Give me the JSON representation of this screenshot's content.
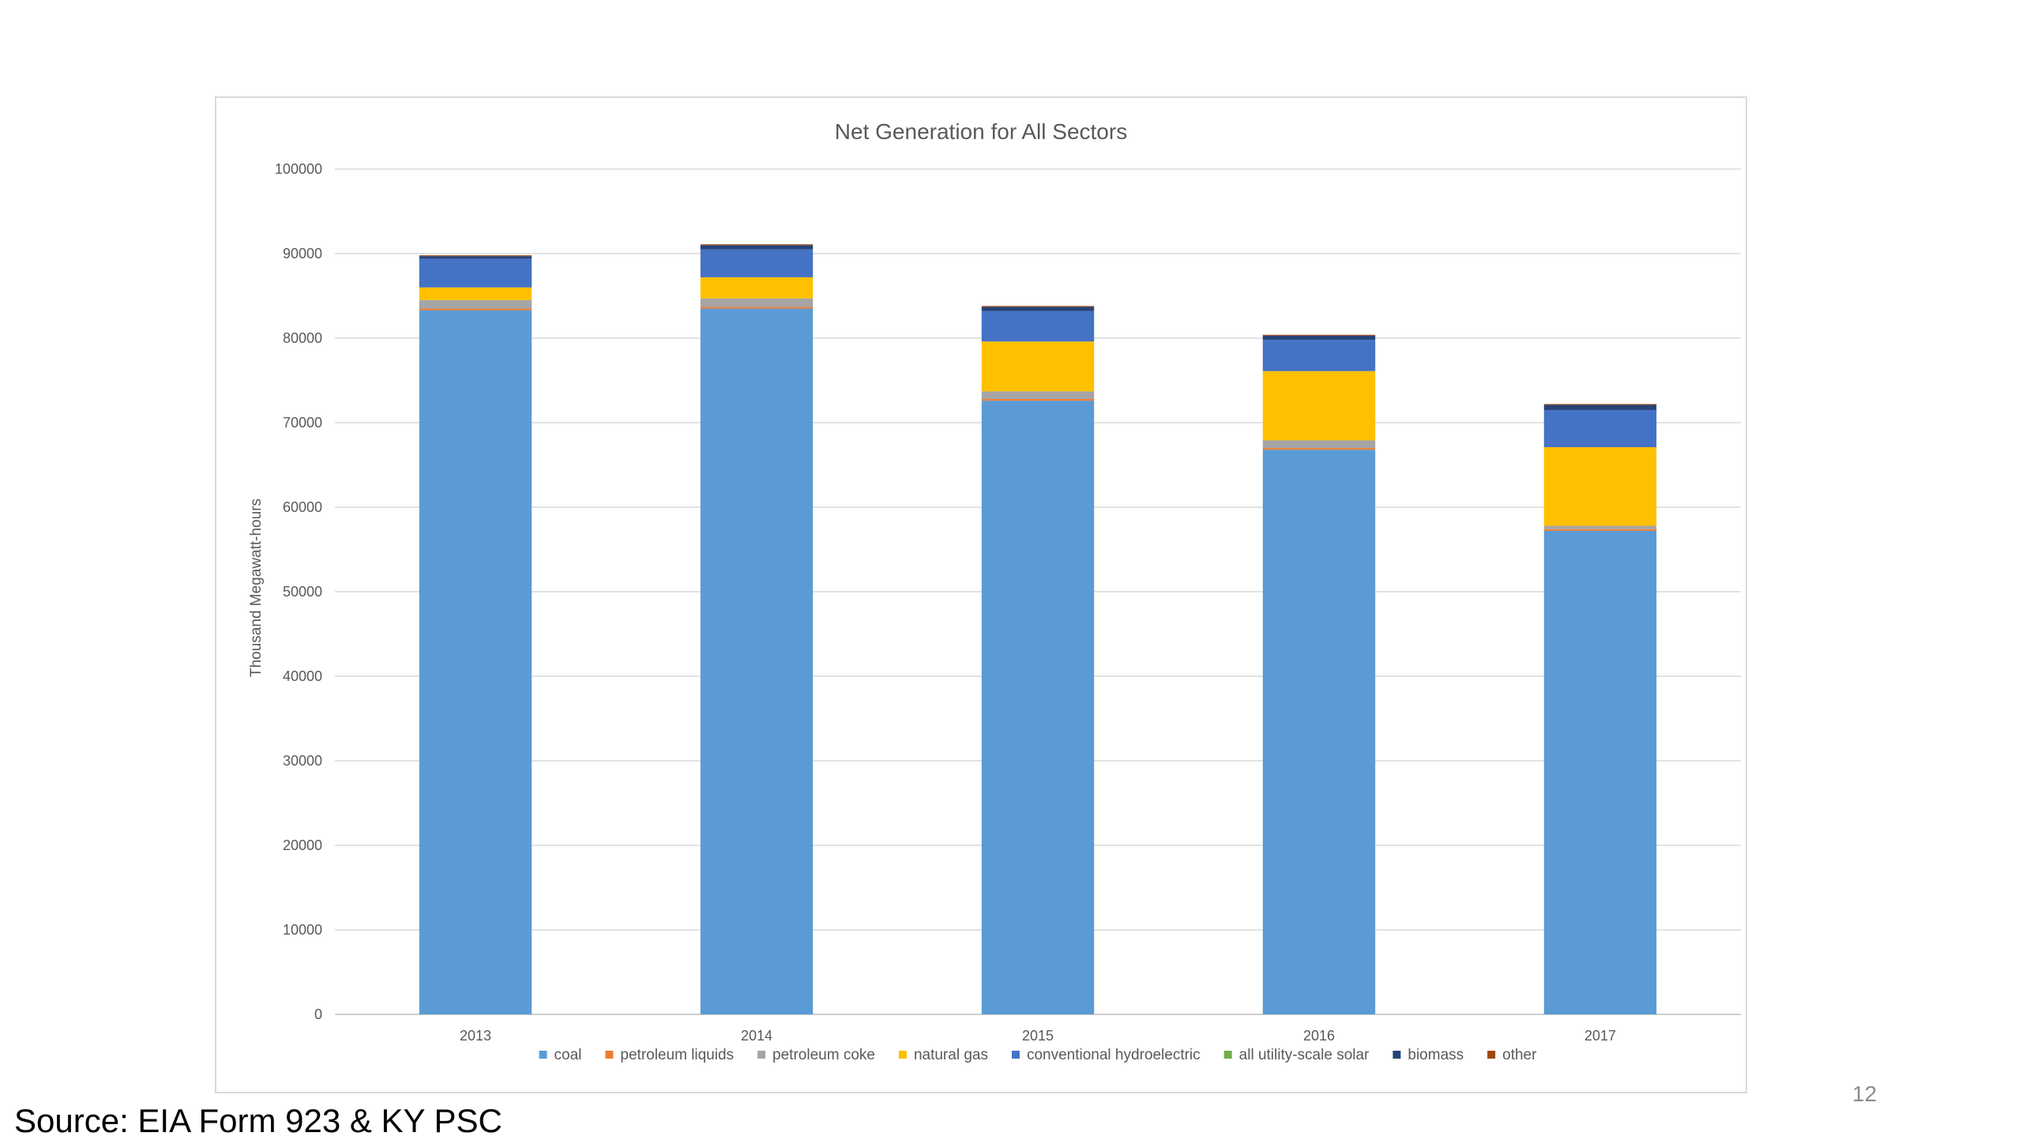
{
  "slide": {
    "source_note": "Source: EIA Form 923 & KY PSC",
    "page_number": "12"
  },
  "chart_data": {
    "type": "bar",
    "stacked": true,
    "title": "Net Generation for All Sectors",
    "xlabel": "",
    "ylabel": "Thousand Megawatt-hours",
    "ylim": [
      0,
      100000
    ],
    "yticks": [
      0,
      10000,
      20000,
      30000,
      40000,
      50000,
      60000,
      70000,
      80000,
      90000,
      100000
    ],
    "grid": true,
    "legend_position": "bottom",
    "categories": [
      "2013",
      "2014",
      "2015",
      "2016",
      "2017"
    ],
    "series": [
      {
        "name": "coal",
        "color": "#5B9BD5",
        "values": [
          83300,
          83500,
          72600,
          66800,
          57200
        ]
      },
      {
        "name": "petroleum liquids",
        "color": "#ED7D31",
        "values": [
          200,
          200,
          200,
          200,
          200
        ]
      },
      {
        "name": "petroleum coke",
        "color": "#A5A5A5",
        "values": [
          1000,
          1000,
          900,
          900,
          400
        ]
      },
      {
        "name": "natural gas",
        "color": "#FFC000",
        "values": [
          1500,
          2500,
          5900,
          8200,
          9300
        ]
      },
      {
        "name": "conventional hydroelectric",
        "color": "#4472C4",
        "values": [
          3400,
          3300,
          3600,
          3700,
          4400
        ]
      },
      {
        "name": "all utility-scale solar",
        "color": "#70AD47",
        "values": [
          0,
          0,
          0,
          0,
          0
        ]
      },
      {
        "name": "biomass",
        "color": "#264478",
        "values": [
          300,
          500,
          500,
          500,
          600
        ]
      },
      {
        "name": "other",
        "color": "#9E480E",
        "values": [
          100,
          100,
          100,
          100,
          100
        ]
      }
    ]
  }
}
